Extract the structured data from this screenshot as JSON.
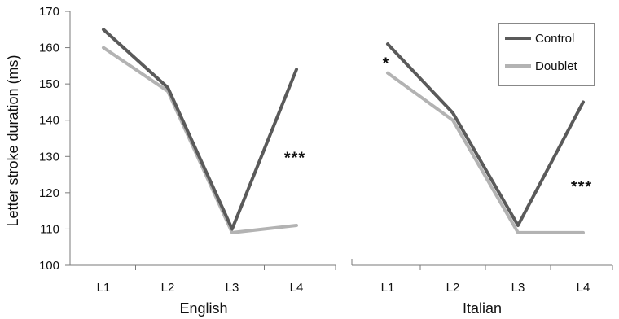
{
  "chart_data": {
    "type": "line",
    "ylabel": "Letter stroke duration (ms)",
    "ylim": [
      100,
      170
    ],
    "yticks": [
      100,
      110,
      120,
      130,
      140,
      150,
      160,
      170
    ],
    "grid": false,
    "legend_position": "top-right",
    "colors": {
      "Control": "#5a5a5a",
      "Doublet": "#b3b3b3"
    },
    "panels": [
      {
        "group": "English",
        "categories": [
          "L1",
          "L2",
          "L3",
          "L4"
        ],
        "series": [
          {
            "name": "Control",
            "values": [
              165,
              149,
              110,
              154
            ]
          },
          {
            "name": "Doublet",
            "values": [
              160,
              148,
              109,
              111
            ]
          }
        ],
        "annotations": [
          {
            "text": "***",
            "category": "L4",
            "y": 130
          }
        ]
      },
      {
        "group": "Italian",
        "categories": [
          "L1",
          "L2",
          "L3",
          "L4"
        ],
        "series": [
          {
            "name": "Control",
            "values": [
              161,
              142,
              111,
              145
            ]
          },
          {
            "name": "Doublet",
            "values": [
              153,
              140,
              109,
              109
            ]
          }
        ],
        "annotations": [
          {
            "text": "*",
            "category": "L1",
            "y": 156
          },
          {
            "text": "***",
            "category": "L4",
            "y": 122
          }
        ]
      }
    ],
    "legend": [
      {
        "name": "Control"
      },
      {
        "name": "Doublet"
      }
    ]
  }
}
